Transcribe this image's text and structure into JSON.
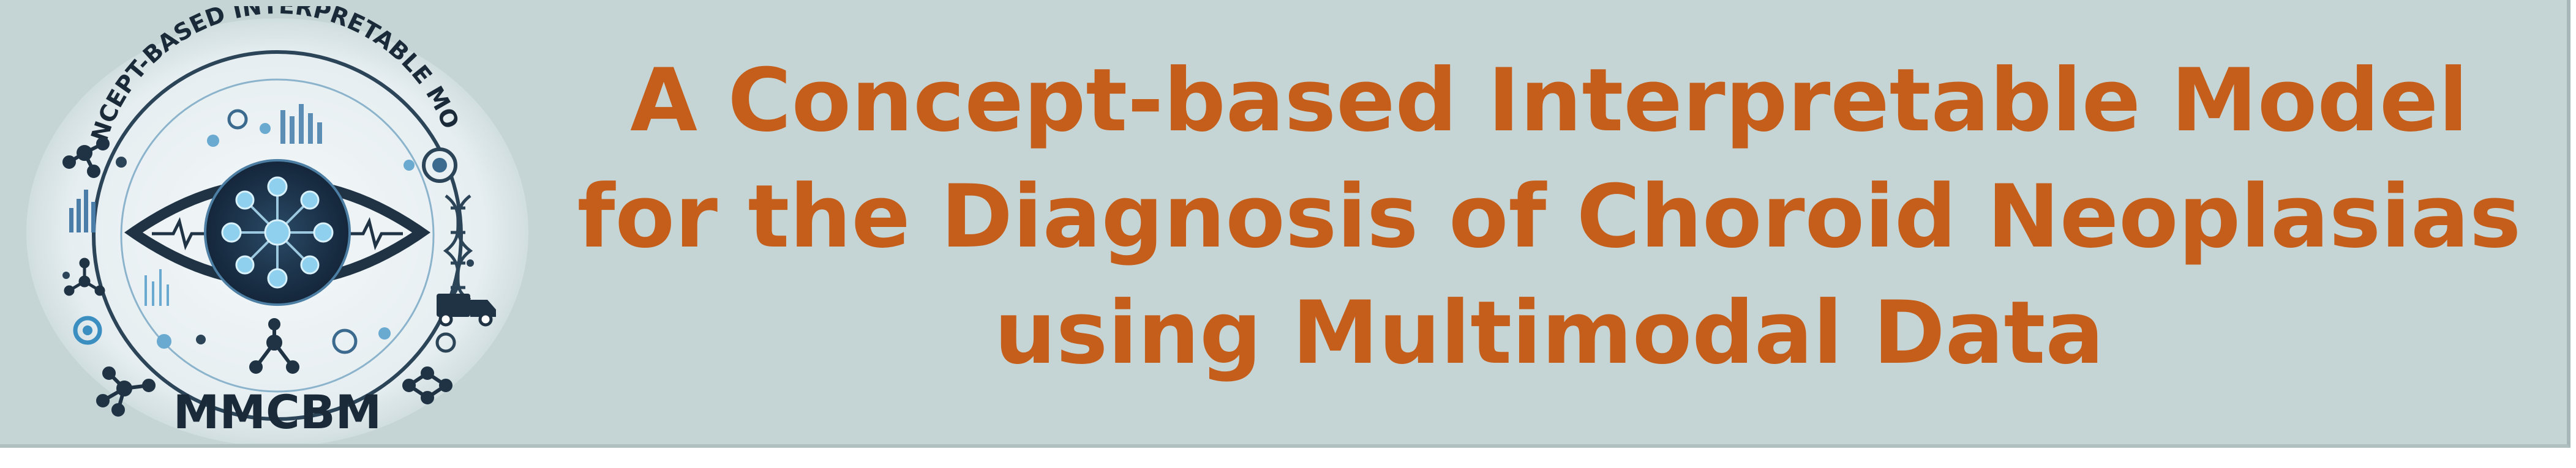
{
  "logo": {
    "arc_text": "CONCEPT-BASED INTERPRETABLE MODEL",
    "acronym": "MMCBM",
    "icon": "eye-neural-network-icon"
  },
  "title": {
    "lines": [
      "A Concept-based Interpretable Model",
      "for the Diagnosis of Choroid Neoplasias",
      "using Multimodal Data"
    ]
  },
  "colors": {
    "background": "#c5d5d5",
    "title": "#c55e1b",
    "logo_dark": "#1f3344",
    "logo_light": "#eef3f5",
    "logo_accent": "#6aaad0"
  }
}
